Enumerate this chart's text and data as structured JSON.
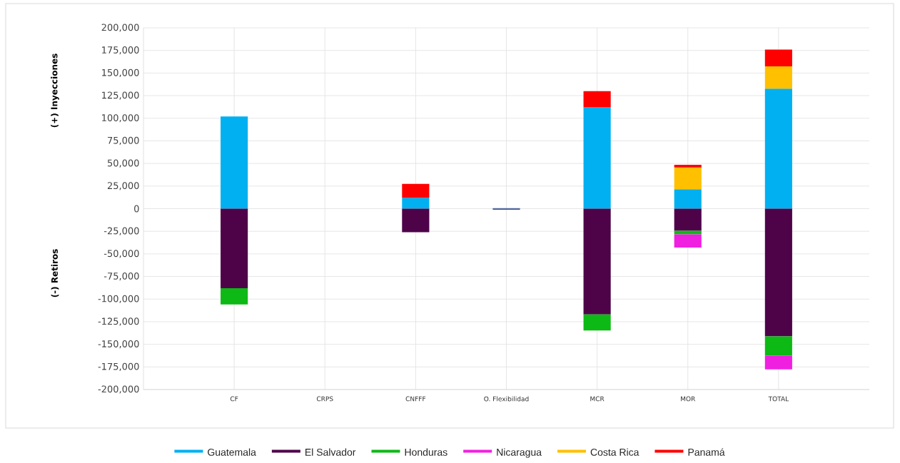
{
  "chart_data": {
    "type": "bar",
    "stacked": true,
    "ylabel": "(+) Inyecciones",
    "annotations": [
      "(-) Retiros"
    ],
    "categories": [
      "CF",
      "CRPS",
      "CNFFF",
      "O. Flexibilidad",
      "MCR",
      "MOR",
      "TOTAL"
    ],
    "series": [
      {
        "name": "Guatemala",
        "color": "#00b0f0",
        "values": [
          102000,
          null,
          12000,
          500,
          112000,
          21500,
          132800
        ]
      },
      {
        "name": "El Salvador",
        "color": "#4e0349",
        "values": [
          -88000,
          null,
          -26000,
          -1000,
          -117000,
          -24400,
          -141200
        ]
      },
      {
        "name": "Honduras",
        "color": "#0db915",
        "values": [
          -18000,
          null,
          null,
          null,
          -17700,
          -4000,
          -21300
        ]
      },
      {
        "name": "Nicaragua",
        "color": "#f020e0",
        "values": [
          null,
          null,
          null,
          null,
          null,
          -14500,
          -15200
        ]
      },
      {
        "name": "Costa Rica",
        "color": "#ffc000",
        "values": [
          null,
          null,
          null,
          null,
          null,
          24000,
          24500
        ]
      },
      {
        "name": "Panamá",
        "color": "#ff0000",
        "values": [
          null,
          null,
          15500,
          null,
          18000,
          3000,
          18700
        ]
      }
    ],
    "ylim": [
      -200000,
      200000
    ],
    "yticks": [
      {
        "value": -200000,
        "label": "-200,000"
      },
      {
        "value": -175000,
        "label": "-175,000"
      },
      {
        "value": -150000,
        "label": "-150,000"
      },
      {
        "value": -125000,
        "label": "-125,000"
      },
      {
        "value": -100000,
        "label": "-100,000"
      },
      {
        "value": -75000,
        "label": "-75,000"
      },
      {
        "value": -50000,
        "label": "-50,000"
      },
      {
        "value": -25000,
        "label": "-25,000"
      },
      0,
      {
        "value": 25000,
        "label": "25,000"
      },
      {
        "value": 50000,
        "label": "50,000"
      },
      {
        "value": 75000,
        "label": "75,000"
      },
      {
        "value": 100000,
        "label": "100,000"
      },
      {
        "value": 125000,
        "label": "125,000"
      },
      {
        "value": 150000,
        "label": "150,000"
      },
      {
        "value": 175000,
        "label": "175,000"
      },
      {
        "value": 200000,
        "label": "200,000"
      }
    ],
    "grid": true,
    "legend": "bottom"
  }
}
